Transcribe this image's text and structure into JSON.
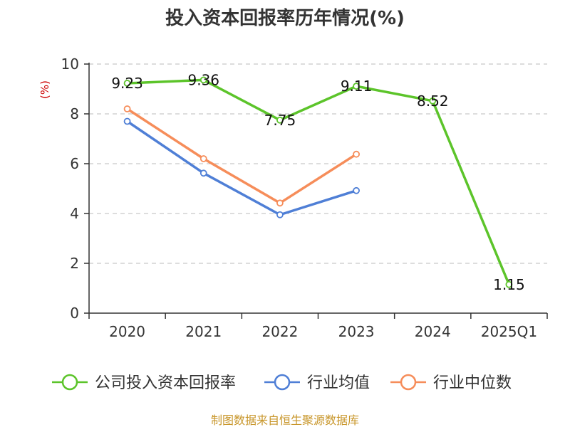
{
  "chart_data": {
    "type": "line",
    "title": "投入资本回报率历年情况(%)",
    "ylabel": "(%)",
    "xlabel": "",
    "categories": [
      "2020",
      "2021",
      "2022",
      "2023",
      "2024",
      "2025Q1"
    ],
    "ylim": [
      0,
      10
    ],
    "yticks": [
      0,
      2,
      4,
      6,
      8,
      10
    ],
    "grid": true,
    "legend_position": "bottom",
    "series": [
      {
        "name": "公司投入资本回报率",
        "color": "#5cc42a",
        "values": [
          9.23,
          9.36,
          7.75,
          9.11,
          8.52,
          1.15
        ],
        "labels": [
          "9.23",
          "9.36",
          "7.75",
          "9.11",
          "8.52",
          "1.15"
        ]
      },
      {
        "name": "行业均值",
        "color": "#4f7fd6",
        "values": [
          7.7,
          5.62,
          3.95,
          4.92,
          null,
          null
        ]
      },
      {
        "name": "行业中位数",
        "color": "#f68d5a",
        "values": [
          8.2,
          6.2,
          4.42,
          6.38,
          null,
          null
        ]
      }
    ]
  },
  "footer": "制图数据来自恒生聚源数据库"
}
